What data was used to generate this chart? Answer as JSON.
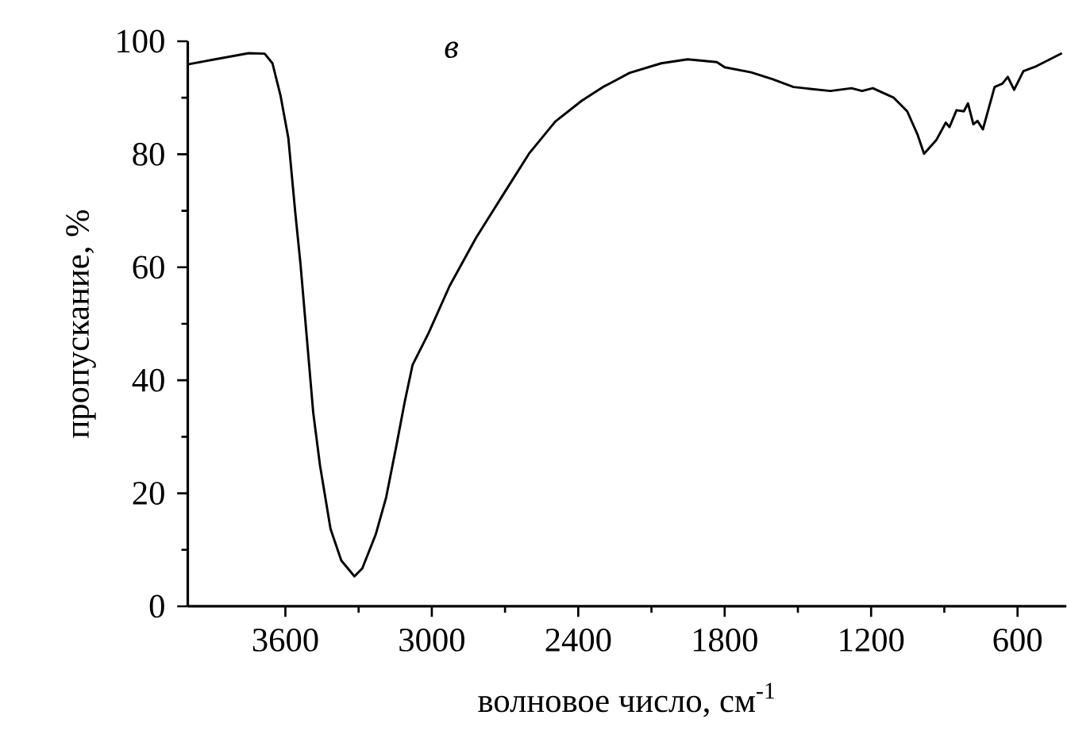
{
  "chart_data": {
    "type": "line",
    "xlabel": "волновое число, см$^{-1}$",
    "ylabel": "пропускание, %",
    "annotations": [
      "*в*"
    ],
    "xlim": [
      4000,
      400
    ],
    "xticks": [
      3600,
      3000,
      2400,
      1800,
      1200,
      600
    ],
    "ylim": [
      0,
      100
    ],
    "yticks": [
      0,
      20,
      40,
      60,
      80,
      100
    ],
    "series": [
      {
        "color": "#000000",
        "x": [
          4000,
          3902,
          3750,
          3685,
          3653,
          3620,
          3588,
          3560,
          3538,
          3512,
          3486,
          3458,
          3415,
          3371,
          3317,
          3285,
          3230,
          3187,
          3144,
          3111,
          3079,
          3014,
          2927,
          2819,
          2710,
          2602,
          2494,
          2385,
          2299,
          2233,
          2190,
          2060,
          1952,
          1832,
          1800,
          1692,
          1605,
          1518,
          1367,
          1280,
          1237,
          1193,
          1107,
          1052,
          1009,
          983,
          933,
          894,
          879,
          850,
          820,
          803,
          781,
          764,
          742,
          694,
          662,
          640,
          614,
          576,
          522,
          418
        ],
        "values": [
          95.9,
          96.7,
          97.9,
          97.8,
          96.1,
          90.4,
          82.9,
          69.9,
          60.5,
          47.4,
          34.3,
          24.9,
          13.7,
          8.1,
          5.3,
          6.7,
          12.7,
          19.3,
          28.7,
          36.2,
          42.7,
          48.3,
          56.7,
          65.2,
          72.7,
          80.1,
          85.8,
          89.5,
          91.9,
          93.4,
          94.4,
          96.1,
          96.8,
          96.3,
          95.4,
          94.5,
          93.3,
          91.9,
          91.2,
          91.7,
          91.2,
          91.7,
          90.0,
          87.6,
          83.4,
          80.1,
          82.5,
          85.6,
          84.8,
          87.8,
          87.6,
          89.0,
          85.3,
          85.9,
          84.4,
          91.9,
          92.5,
          93.7,
          91.4,
          94.7,
          95.6,
          97.9
        ]
      }
    ]
  }
}
